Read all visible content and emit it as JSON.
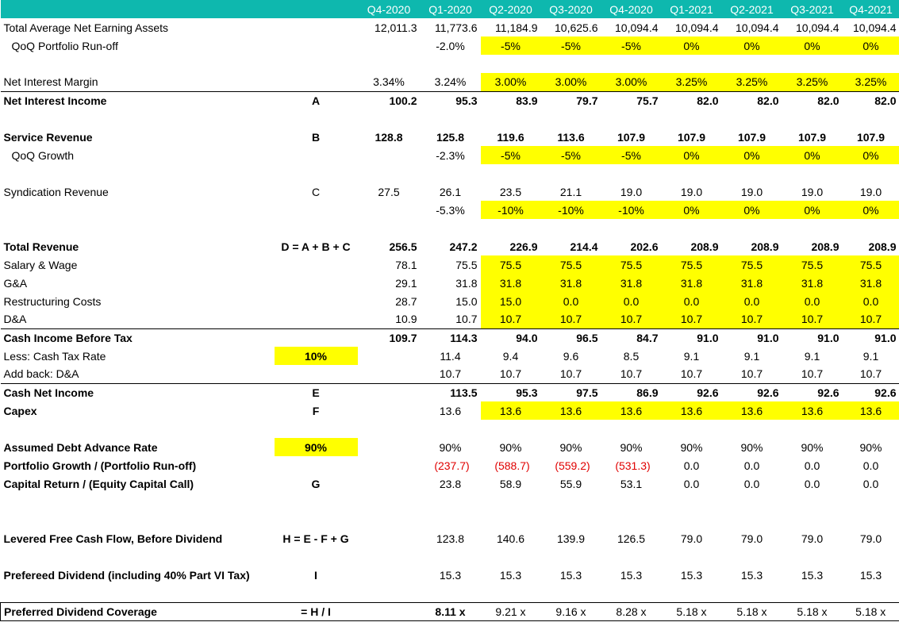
{
  "periods": [
    "Q4-2020",
    "Q1-2020",
    "Q2-2020",
    "Q3-2020",
    "Q4-2020",
    "Q1-2021",
    "Q2-2021",
    "Q3-2021",
    "Q4-2021"
  ],
  "rows": [
    {
      "label": "Total Average Net Earning Assets",
      "formula": "",
      "vals": [
        "12,011.3",
        "11,773.6",
        "11,184.9",
        "10,625.6",
        "10,094.4",
        "10,094.4",
        "10,094.4",
        "10,094.4",
        "10,094.4"
      ]
    },
    {
      "label": "QoQ Portfolio Run-off",
      "formula": "",
      "vals": [
        "",
        "-2.0%",
        "-5%",
        "-5%",
        "-5%",
        "0%",
        "0%",
        "0%",
        "0%"
      ]
    },
    {
      "label": "Net Interest Margin",
      "formula": "",
      "vals": [
        "3.34%",
        "3.24%",
        "3.00%",
        "3.00%",
        "3.00%",
        "3.25%",
        "3.25%",
        "3.25%",
        "3.25%"
      ]
    },
    {
      "label": "Net Interest Income",
      "formula": "A",
      "vals": [
        "100.2",
        "95.3",
        "83.9",
        "79.7",
        "75.7",
        "82.0",
        "82.0",
        "82.0",
        "82.0"
      ]
    },
    {
      "label": "Service Revenue",
      "formula": "B",
      "vals": [
        "128.8",
        "125.8",
        "119.6",
        "113.6",
        "107.9",
        "107.9",
        "107.9",
        "107.9",
        "107.9"
      ]
    },
    {
      "label": "QoQ Growth",
      "formula": "",
      "vals": [
        "",
        "-2.3%",
        "-5%",
        "-5%",
        "-5%",
        "0%",
        "0%",
        "0%",
        "0%"
      ]
    },
    {
      "label": "Syndication Revenue",
      "formula": "C",
      "vals": [
        "27.5",
        "26.1",
        "23.5",
        "21.1",
        "19.0",
        "19.0",
        "19.0",
        "19.0",
        "19.0"
      ]
    },
    {
      "label": "",
      "formula": "",
      "vals": [
        "",
        "-5.3%",
        "-10%",
        "-10%",
        "-10%",
        "0%",
        "0%",
        "0%",
        "0%"
      ]
    },
    {
      "label": "Total Revenue",
      "formula": "D = A + B + C",
      "vals": [
        "256.5",
        "247.2",
        "226.9",
        "214.4",
        "202.6",
        "208.9",
        "208.9",
        "208.9",
        "208.9"
      ]
    },
    {
      "label": "Salary & Wage",
      "formula": "",
      "vals": [
        "78.1",
        "75.5",
        "75.5",
        "75.5",
        "75.5",
        "75.5",
        "75.5",
        "75.5",
        "75.5"
      ]
    },
    {
      "label": "G&A",
      "formula": "",
      "vals": [
        "29.1",
        "31.8",
        "31.8",
        "31.8",
        "31.8",
        "31.8",
        "31.8",
        "31.8",
        "31.8"
      ]
    },
    {
      "label": "Restructuring Costs",
      "formula": "",
      "vals": [
        "28.7",
        "15.0",
        "15.0",
        "0.0",
        "0.0",
        "0.0",
        "0.0",
        "0.0",
        "0.0"
      ]
    },
    {
      "label": "D&A",
      "formula": "",
      "vals": [
        "10.9",
        "10.7",
        "10.7",
        "10.7",
        "10.7",
        "10.7",
        "10.7",
        "10.7",
        "10.7"
      ]
    },
    {
      "label": "Cash Income Before Tax",
      "formula": "",
      "vals": [
        "109.7",
        "114.3",
        "94.0",
        "96.5",
        "84.7",
        "91.0",
        "91.0",
        "91.0",
        "91.0"
      ]
    },
    {
      "label": "Less: Cash Tax Rate",
      "formula": "10%",
      "vals": [
        "",
        "11.4",
        "9.4",
        "9.6",
        "8.5",
        "9.1",
        "9.1",
        "9.1",
        "9.1"
      ]
    },
    {
      "label": "Add back: D&A",
      "formula": "",
      "vals": [
        "",
        "10.7",
        "10.7",
        "10.7",
        "10.7",
        "10.7",
        "10.7",
        "10.7",
        "10.7"
      ]
    },
    {
      "label": "Cash Net Income",
      "formula": "E",
      "vals": [
        "",
        "113.5",
        "95.3",
        "97.5",
        "86.9",
        "92.6",
        "92.6",
        "92.6",
        "92.6"
      ]
    },
    {
      "label": "Capex",
      "formula": "F",
      "vals": [
        "",
        "13.6",
        "13.6",
        "13.6",
        "13.6",
        "13.6",
        "13.6",
        "13.6",
        "13.6"
      ]
    },
    {
      "label": "Assumed Debt Advance Rate",
      "formula": "90%",
      "vals": [
        "",
        "90%",
        "90%",
        "90%",
        "90%",
        "90%",
        "90%",
        "90%",
        "90%"
      ]
    },
    {
      "label": "Portfolio Growth / (Portfolio Run-off)",
      "formula": "",
      "vals": [
        "",
        "(237.7)",
        "(588.7)",
        "(559.2)",
        "(531.3)",
        "0.0",
        "0.0",
        "0.0",
        "0.0"
      ]
    },
    {
      "label": "Capital Return / (Equity Capital Call)",
      "formula": "G",
      "vals": [
        "",
        "23.8",
        "58.9",
        "55.9",
        "53.1",
        "0.0",
        "0.0",
        "0.0",
        "0.0"
      ]
    },
    {
      "label": "Levered Free Cash Flow, Before Dividend",
      "formula": "H = E - F + G",
      "vals": [
        "",
        "123.8",
        "140.6",
        "139.9",
        "126.5",
        "79.0",
        "79.0",
        "79.0",
        "79.0"
      ]
    },
    {
      "label": "Prefereed Dividend (including 40% Part VI Tax)",
      "formula": "I",
      "vals": [
        "",
        "15.3",
        "15.3",
        "15.3",
        "15.3",
        "15.3",
        "15.3",
        "15.3",
        "15.3"
      ]
    },
    {
      "label": "Preferred Dividend Coverage",
      "formula": "= H / I",
      "vals": [
        "",
        "8.11 x",
        "9.21 x",
        "9.16 x",
        "8.28 x",
        "5.18 x",
        "5.18 x",
        "5.18 x",
        "5.18 x"
      ]
    }
  ]
}
